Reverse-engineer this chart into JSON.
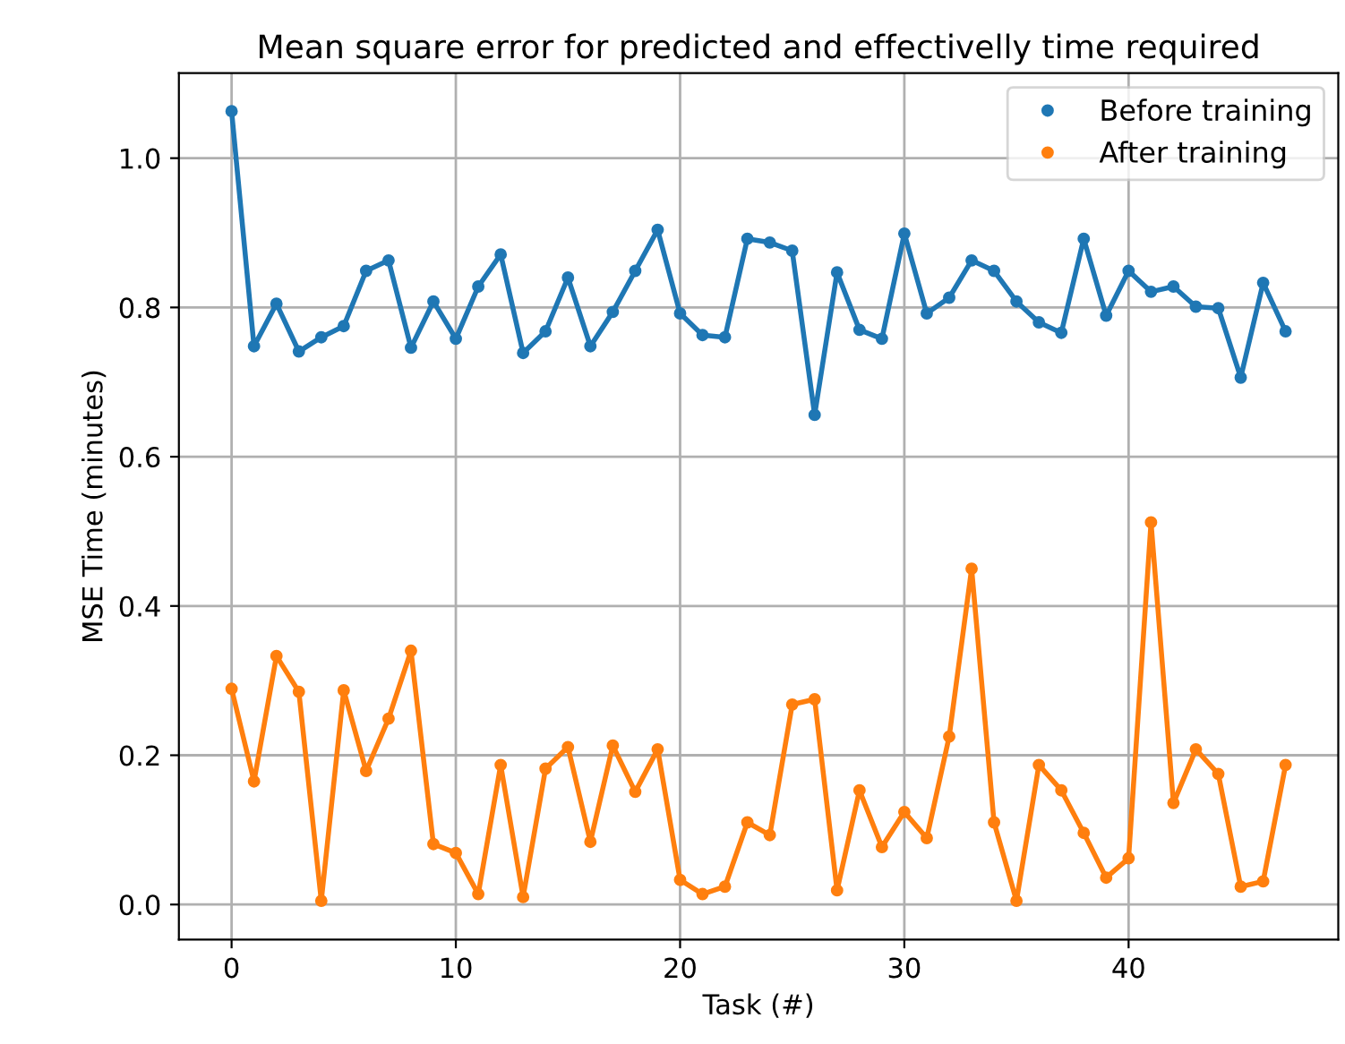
{
  "chart_data": {
    "type": "line",
    "title": "Mean square error for predicted and effectivelly time required",
    "xlabel": "Task (#)",
    "ylabel": "MSE Time (minutes)",
    "x": [
      0,
      1,
      2,
      3,
      4,
      5,
      6,
      7,
      8,
      9,
      10,
      11,
      12,
      13,
      14,
      15,
      16,
      17,
      18,
      19,
      20,
      21,
      22,
      23,
      24,
      25,
      26,
      27,
      28,
      29,
      30,
      31,
      32,
      33,
      34,
      35,
      36,
      37,
      38,
      39,
      40,
      41,
      42,
      43,
      44,
      45,
      46,
      47
    ],
    "series": [
      {
        "name": "Before training",
        "color": "#1f77b4",
        "values": [
          1.063,
          0.748,
          0.805,
          0.741,
          0.76,
          0.775,
          0.849,
          0.863,
          0.746,
          0.808,
          0.758,
          0.828,
          0.871,
          0.739,
          0.768,
          0.84,
          0.748,
          0.794,
          0.849,
          0.904,
          0.792,
          0.763,
          0.76,
          0.892,
          0.887,
          0.876,
          0.656,
          0.847,
          0.77,
          0.758,
          0.899,
          0.792,
          0.813,
          0.863,
          0.849,
          0.808,
          0.78,
          0.766,
          0.892,
          0.789,
          0.849,
          0.821,
          0.828,
          0.801,
          0.799,
          0.706,
          0.833,
          0.768
        ]
      },
      {
        "name": "After training",
        "color": "#ff7f0e",
        "values": [
          0.289,
          0.165,
          0.333,
          0.285,
          0.005,
          0.287,
          0.179,
          0.249,
          0.34,
          0.081,
          0.069,
          0.014,
          0.187,
          0.01,
          0.182,
          0.211,
          0.084,
          0.213,
          0.151,
          0.208,
          0.033,
          0.014,
          0.024,
          0.11,
          0.093,
          0.268,
          0.275,
          0.019,
          0.153,
          0.077,
          0.124,
          0.089,
          0.225,
          0.45,
          0.11,
          0.005,
          0.187,
          0.153,
          0.096,
          0.036,
          0.062,
          0.512,
          0.136,
          0.208,
          0.175,
          0.024,
          0.031,
          0.187
        ]
      }
    ],
    "xlim": [
      -2.35,
      49.35
    ],
    "ylim": [
      -0.047,
      1.114
    ],
    "xticks": [
      0,
      10,
      20,
      30,
      40
    ],
    "yticks": [
      {
        "value": 0,
        "label": "0.0"
      },
      {
        "value": 0.2,
        "label": "0.2"
      },
      {
        "value": 0.4,
        "label": "0.4"
      },
      {
        "value": 0.6,
        "label": "0.6"
      },
      {
        "value": 0.8,
        "label": "0.8"
      },
      {
        "value": 1.0,
        "label": "1.0"
      }
    ],
    "grid": true,
    "legend": "top right",
    "marker": "circle",
    "line_style": "solid"
  }
}
